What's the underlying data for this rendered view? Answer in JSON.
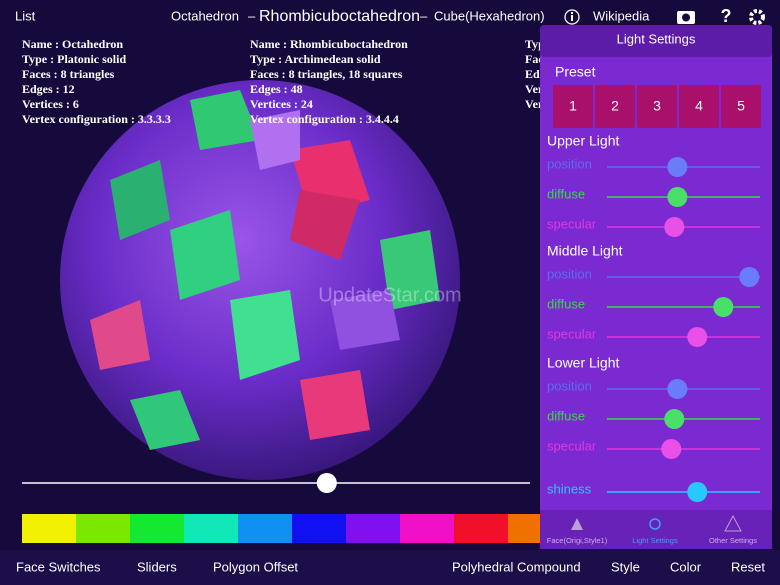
{
  "top_bar": {
    "list": "List",
    "left_shape": "Octahedron",
    "separator_left": "–",
    "title": "Rhombicuboctahedron",
    "separator_right": "–",
    "right_shape": "Cube(Hexahedron)",
    "wikipedia": "Wikipedia"
  },
  "info_left": [
    "Name : Octahedron",
    "Type : Platonic solid",
    "Faces : 8 triangles",
    "Edges : 12",
    "Vertices : 6",
    "Vertex configuration : 3.3.3.3"
  ],
  "info_middle": [
    "Name : Rhombicuboctahedron",
    "Type : Archimedean solid",
    "Faces : 8 triangles, 18 squares",
    "Edges : 48",
    "Vertices : 24",
    "Vertex configuration : 3.4.4.4"
  ],
  "info_right": [
    "Typ",
    "Fac",
    "Ed",
    "Ver",
    "Ver"
  ],
  "watermark": "UpdateStar.com",
  "main_slider": 0.6,
  "color_palette": [
    "#f0f000",
    "#7ae800",
    "#14e830",
    "#10e8b8",
    "#1090f0",
    "#1010f0",
    "#8010f0",
    "#f010c8",
    "#f0102a",
    "#f07000"
  ],
  "bottom_bar": [
    "Face Switches",
    "Sliders",
    "Polygon Offset",
    "Polyhedral Compound",
    "Style",
    "Color",
    "Reset"
  ],
  "panel": {
    "title": "Light Settings",
    "preset_label": "Preset",
    "presets": [
      "1",
      "2",
      "3",
      "4",
      "5"
    ],
    "groups": [
      {
        "name": "Upper Light",
        "sliders": [
          {
            "label": "position",
            "value": 0.46
          },
          {
            "label": "diffuse",
            "value": 0.46
          },
          {
            "label": "specular",
            "value": 0.44
          }
        ]
      },
      {
        "name": "Middle Light",
        "sliders": [
          {
            "label": "position",
            "value": 0.93
          },
          {
            "label": "diffuse",
            "value": 0.76
          },
          {
            "label": "specular",
            "value": 0.59
          }
        ]
      },
      {
        "name": "Lower Light",
        "sliders": [
          {
            "label": "position",
            "value": 0.46
          },
          {
            "label": "diffuse",
            "value": 0.44
          },
          {
            "label": "specular",
            "value": 0.42
          }
        ]
      }
    ],
    "shiness": {
      "label": "shiness",
      "value": 0.59
    },
    "tabs": [
      "Face(Origi,Style1)",
      "Light Settings",
      "Other Settings"
    ]
  }
}
